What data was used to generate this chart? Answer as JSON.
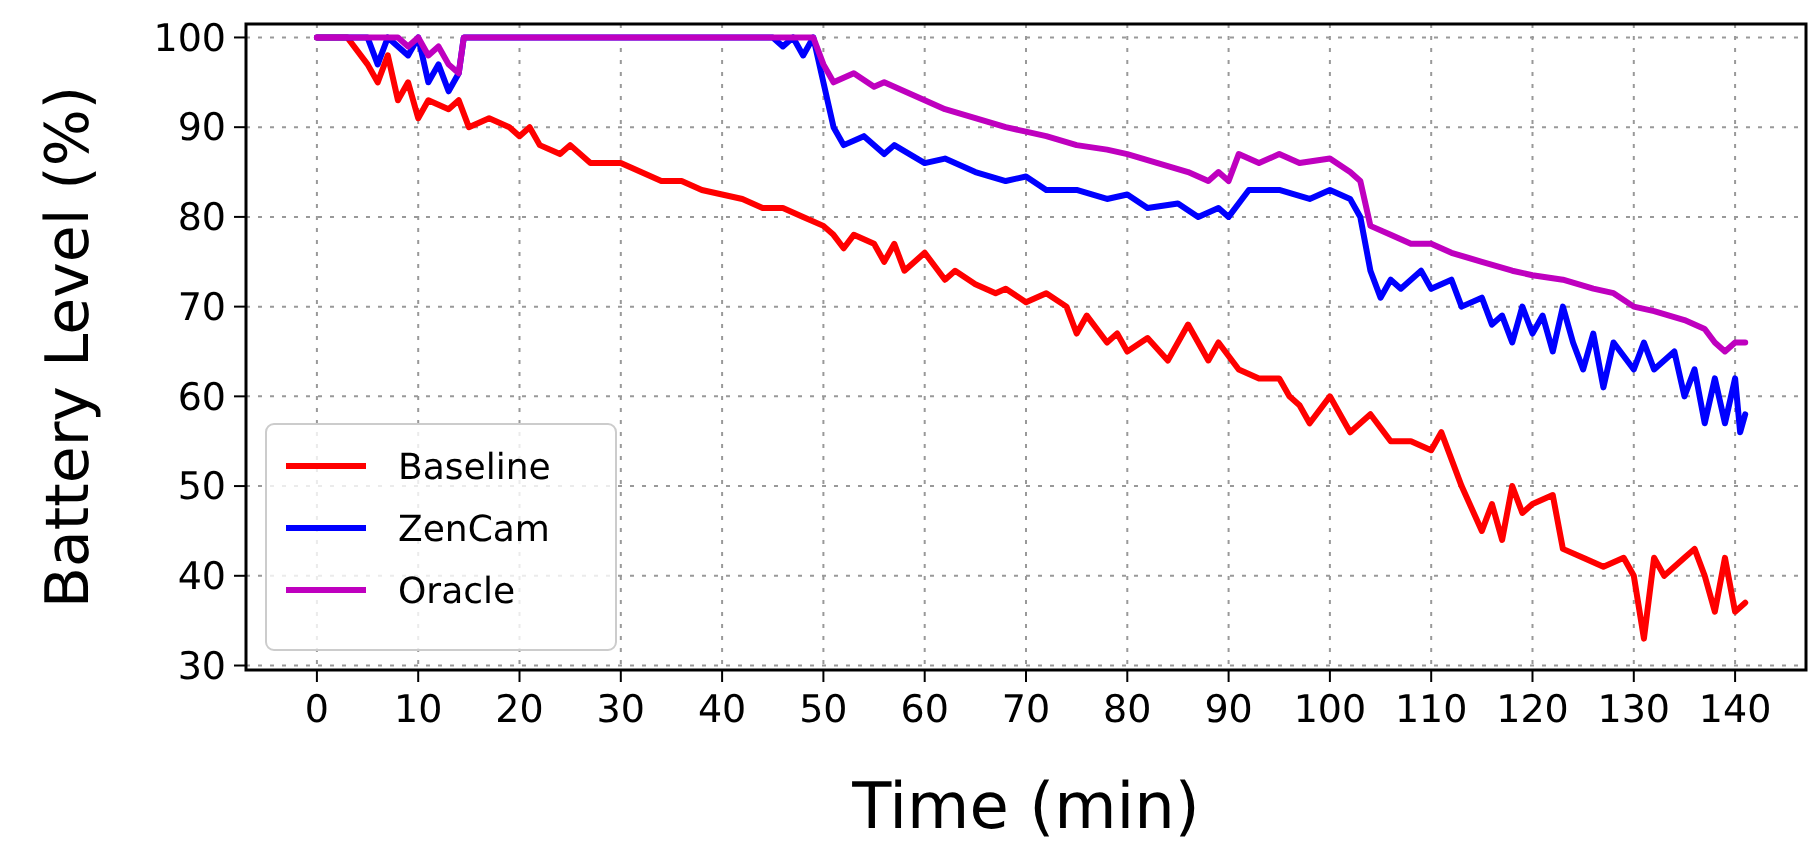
{
  "chart_data": {
    "type": "line",
    "xlabel": "Time (min)",
    "ylabel": "Battery Level (%)",
    "xlim": [
      -7,
      147
    ],
    "xticks": [
      0,
      10,
      20,
      30,
      40,
      50,
      60,
      70,
      80,
      90,
      100,
      110,
      120,
      130,
      140
    ],
    "ylim": [
      29.5,
      101.5
    ],
    "yticks": [
      30,
      40,
      50,
      60,
      70,
      80,
      90,
      100
    ],
    "grid": true,
    "legend": "bottom left",
    "line_style": "solid",
    "series": [
      {
        "name": "Baseline",
        "color": "#ff0000",
        "x": [
          0,
          3,
          5,
          6,
          7,
          8,
          9,
          10,
          11,
          13,
          14,
          15,
          17,
          19,
          20,
          21,
          22,
          24,
          25,
          27,
          30,
          32,
          34,
          36,
          38,
          40,
          42,
          44,
          46,
          48,
          50,
          51,
          52,
          53,
          55,
          56,
          57,
          58,
          60,
          62,
          63,
          65,
          67,
          68,
          70,
          72,
          74,
          75,
          76,
          78,
          79,
          80,
          82,
          84,
          86,
          88,
          89,
          91,
          93,
          95,
          96,
          97,
          98,
          100,
          102,
          104,
          106,
          108,
          110,
          111,
          113,
          115,
          116,
          117,
          118,
          119,
          120,
          122,
          123,
          125,
          127,
          129,
          130,
          131,
          132,
          133,
          135,
          136,
          137,
          138,
          139,
          140,
          141
        ],
        "values": [
          100,
          100,
          97,
          95,
          98,
          93,
          95,
          91,
          93,
          92,
          93,
          90,
          91,
          90,
          89,
          90,
          88,
          87,
          88,
          86,
          86,
          85,
          84,
          84,
          83,
          82.5,
          82,
          81,
          81,
          80,
          79,
          78,
          76.5,
          78,
          77,
          75,
          77,
          74,
          76,
          73,
          74,
          72.5,
          71.5,
          72,
          70.5,
          71.5,
          70,
          67,
          69,
          66,
          67,
          65,
          66.5,
          64,
          68,
          64,
          66,
          63,
          62,
          62,
          60,
          59,
          57,
          60,
          56,
          58,
          55,
          55,
          54,
          56,
          50,
          45,
          48,
          44,
          50,
          47,
          48,
          49,
          43,
          42,
          41,
          42,
          40,
          33,
          42,
          40,
          42,
          43,
          40,
          36,
          42,
          36,
          37
        ]
      },
      {
        "name": "ZenCam",
        "color": "#0000ff",
        "x": [
          0,
          5,
          6,
          7,
          9,
          10,
          11,
          12,
          13,
          14,
          14.5,
          45,
          46,
          47,
          48,
          49,
          50,
          51,
          52,
          54,
          56,
          57,
          60,
          62,
          65,
          68,
          70,
          72,
          75,
          78,
          80,
          82,
          85,
          87,
          89,
          90,
          92,
          95,
          98,
          100,
          102,
          103,
          104,
          105,
          106,
          107,
          109,
          110,
          112,
          113,
          115,
          116,
          117,
          118,
          119,
          120,
          121,
          122,
          123,
          124,
          125,
          126,
          127,
          128,
          130,
          131,
          132,
          134,
          135,
          136,
          137,
          138,
          139,
          140,
          140.5,
          141
        ],
        "values": [
          100,
          100,
          97,
          100,
          98,
          100,
          95,
          97,
          94,
          96,
          100,
          100,
          99,
          100,
          98,
          100,
          95,
          90,
          88,
          89,
          87,
          88,
          86,
          86.5,
          85,
          84,
          84.5,
          83,
          83,
          82,
          82.5,
          81,
          81.5,
          80,
          81,
          80,
          83,
          83,
          82,
          83,
          82,
          80,
          74,
          71,
          73,
          72,
          74,
          72,
          73,
          70,
          71,
          68,
          69,
          66,
          70,
          67,
          69,
          65,
          70,
          66,
          63,
          67,
          61,
          66,
          63,
          66,
          63,
          65,
          60,
          63,
          57,
          62,
          57,
          62,
          56,
          58
        ]
      },
      {
        "name": "Oracle",
        "color": "#bf00bf",
        "x": [
          0,
          8,
          9,
          10,
          11,
          12,
          13,
          14,
          14.5,
          49,
          50,
          51,
          53,
          55,
          56,
          60,
          62,
          65,
          68,
          70,
          72,
          75,
          78,
          80,
          83,
          86,
          88,
          89,
          90,
          91,
          93,
          95,
          97,
          100,
          102,
          103,
          104,
          106,
          108,
          110,
          112,
          115,
          118,
          120,
          123,
          126,
          128,
          130,
          132,
          135,
          137,
          138,
          139,
          140,
          141
        ],
        "values": [
          100,
          100,
          99,
          100,
          98,
          99,
          97,
          96,
          100,
          100,
          97,
          95,
          96,
          94.5,
          95,
          93,
          92,
          91,
          90,
          89.5,
          89,
          88,
          87.5,
          87,
          86,
          85,
          84,
          85,
          84,
          87,
          86,
          87,
          86,
          86.5,
          85,
          84,
          79,
          78,
          77,
          77,
          76,
          75,
          74,
          73.5,
          73,
          72,
          71.5,
          70,
          69.5,
          68.5,
          67.5,
          66,
          65,
          66,
          66
        ]
      }
    ]
  }
}
